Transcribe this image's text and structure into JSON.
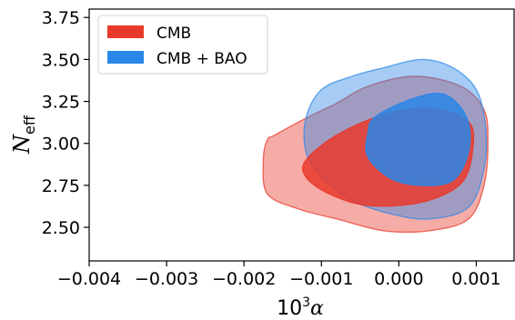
{
  "chart_data": {
    "type": "contour",
    "xlabel_base": "10",
    "xlabel_exp": "3",
    "xlabel_var": "α",
    "ylabel_main": "N",
    "ylabel_sub": "eff",
    "xlim": [
      -0.004,
      0.0015
    ],
    "ylim": [
      2.3,
      3.8
    ],
    "x_ticks": [
      -0.004,
      -0.003,
      -0.002,
      -0.001,
      0.0,
      0.001
    ],
    "x_tick_labels": [
      "−0.004",
      "−0.003",
      "−0.002",
      "−0.001",
      "0.000",
      "0.001"
    ],
    "y_ticks": [
      2.5,
      2.75,
      3.0,
      3.25,
      3.5,
      3.75
    ],
    "y_tick_labels": [
      "2.50",
      "2.75",
      "3.00",
      "3.25",
      "3.50",
      "3.75"
    ],
    "legend_position": "top-left",
    "series": [
      {
        "name": "CMB",
        "color": "#e8392b",
        "contours": {
          "outer_95": [
            [
              -0.0016,
              3.05
            ],
            [
              -0.0012,
              3.15
            ],
            [
              -0.0008,
              3.24
            ],
            [
              -0.0004,
              3.34
            ],
            [
              0.0002,
              3.4
            ],
            [
              0.0008,
              3.34
            ],
            [
              0.0011,
              3.2
            ],
            [
              0.00115,
              3.0
            ],
            [
              0.0011,
              2.75
            ],
            [
              0.0009,
              2.55
            ],
            [
              0.0004,
              2.48
            ],
            [
              -0.0002,
              2.48
            ],
            [
              -0.0008,
              2.55
            ],
            [
              -0.0013,
              2.61
            ],
            [
              -0.0017,
              2.7
            ],
            [
              -0.00175,
              2.9
            ],
            [
              -0.0017,
              3.02
            ]
          ],
          "inner_68": [
            [
              -0.0012,
              2.9
            ],
            [
              -0.0008,
              3.05
            ],
            [
              -0.0002,
              3.17
            ],
            [
              0.0004,
              3.21
            ],
            [
              0.0009,
              3.13
            ],
            [
              0.00095,
              2.95
            ],
            [
              0.0008,
              2.76
            ],
            [
              0.0003,
              2.65
            ],
            [
              -0.0004,
              2.63
            ],
            [
              -0.0009,
              2.7
            ],
            [
              -0.0012,
              2.8
            ]
          ]
        }
      },
      {
        "name": "CMB + BAO",
        "color": "#2a86e8",
        "contours": {
          "outer_95": [
            [
              -0.0006,
              3.4
            ],
            [
              -0.0002,
              3.45
            ],
            [
              0.0003,
              3.5
            ],
            [
              0.0007,
              3.45
            ],
            [
              0.001,
              3.32
            ],
            [
              0.00112,
              3.1
            ],
            [
              0.0011,
              2.85
            ],
            [
              0.0009,
              2.62
            ],
            [
              0.0004,
              2.55
            ],
            [
              -0.0001,
              2.58
            ],
            [
              -0.0006,
              2.66
            ],
            [
              -0.001,
              2.8
            ],
            [
              -0.0012,
              2.95
            ],
            [
              -0.0012,
              3.15
            ],
            [
              -0.001,
              3.32
            ]
          ],
          "inner_68": [
            [
              -0.0003,
              3.16
            ],
            [
              0.0002,
              3.27
            ],
            [
              0.0006,
              3.29
            ],
            [
              0.00088,
              3.15
            ],
            [
              0.0009,
              2.95
            ],
            [
              0.0007,
              2.78
            ],
            [
              0.0003,
              2.75
            ],
            [
              -0.0001,
              2.79
            ],
            [
              -0.0004,
              2.92
            ],
            [
              -0.0004,
              3.06
            ]
          ]
        }
      }
    ]
  }
}
